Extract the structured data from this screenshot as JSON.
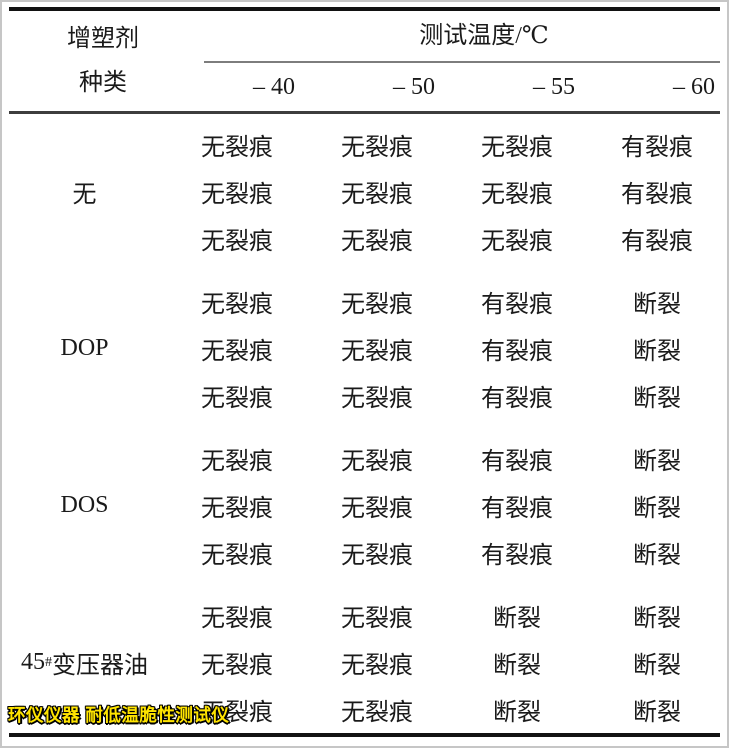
{
  "page": {
    "background": "#ffffff",
    "border_color": "#c6c6c6"
  },
  "table": {
    "header": {
      "row_label_line1": "增塑剂",
      "row_label_line2": "种类",
      "temp_group_label": "测试温度/℃",
      "temp_columns": [
        "– 40",
        "– 50",
        "– 55",
        "– 60"
      ]
    },
    "rules": {
      "heavy_color": "#121212",
      "light_color": "#7d7d7d",
      "mid_color": "#3d3d3d"
    },
    "groups": [
      {
        "label": {
          "pre": "无",
          "sup": "",
          "post": ""
        },
        "rows": [
          [
            "无裂痕",
            "无裂痕",
            "无裂痕",
            "有裂痕"
          ],
          [
            "无裂痕",
            "无裂痕",
            "无裂痕",
            "有裂痕"
          ],
          [
            "无裂痕",
            "无裂痕",
            "无裂痕",
            "有裂痕"
          ]
        ]
      },
      {
        "label": {
          "pre": "DOP",
          "sup": "",
          "post": ""
        },
        "rows": [
          [
            "无裂痕",
            "无裂痕",
            "有裂痕",
            "断裂"
          ],
          [
            "无裂痕",
            "无裂痕",
            "有裂痕",
            "断裂"
          ],
          [
            "无裂痕",
            "无裂痕",
            "有裂痕",
            "断裂"
          ]
        ]
      },
      {
        "label": {
          "pre": "DOS",
          "sup": "",
          "post": ""
        },
        "rows": [
          [
            "无裂痕",
            "无裂痕",
            "有裂痕",
            "断裂"
          ],
          [
            "无裂痕",
            "无裂痕",
            "有裂痕",
            "断裂"
          ],
          [
            "无裂痕",
            "无裂痕",
            "有裂痕",
            "断裂"
          ]
        ]
      },
      {
        "label": {
          "pre": "45",
          "sup": "#",
          "post": "变压器油"
        },
        "rows": [
          [
            "无裂痕",
            "无裂痕",
            "断裂",
            "断裂"
          ],
          [
            "无裂痕",
            "无裂痕",
            "断裂",
            "断裂"
          ],
          [
            "无裂痕",
            "无裂痕",
            "断裂",
            "断裂"
          ]
        ]
      }
    ]
  },
  "watermark": {
    "text": "环仪仪器 耐低温脆性测试仪",
    "fill_color": "#ffe400",
    "outline_color": "#000000"
  }
}
